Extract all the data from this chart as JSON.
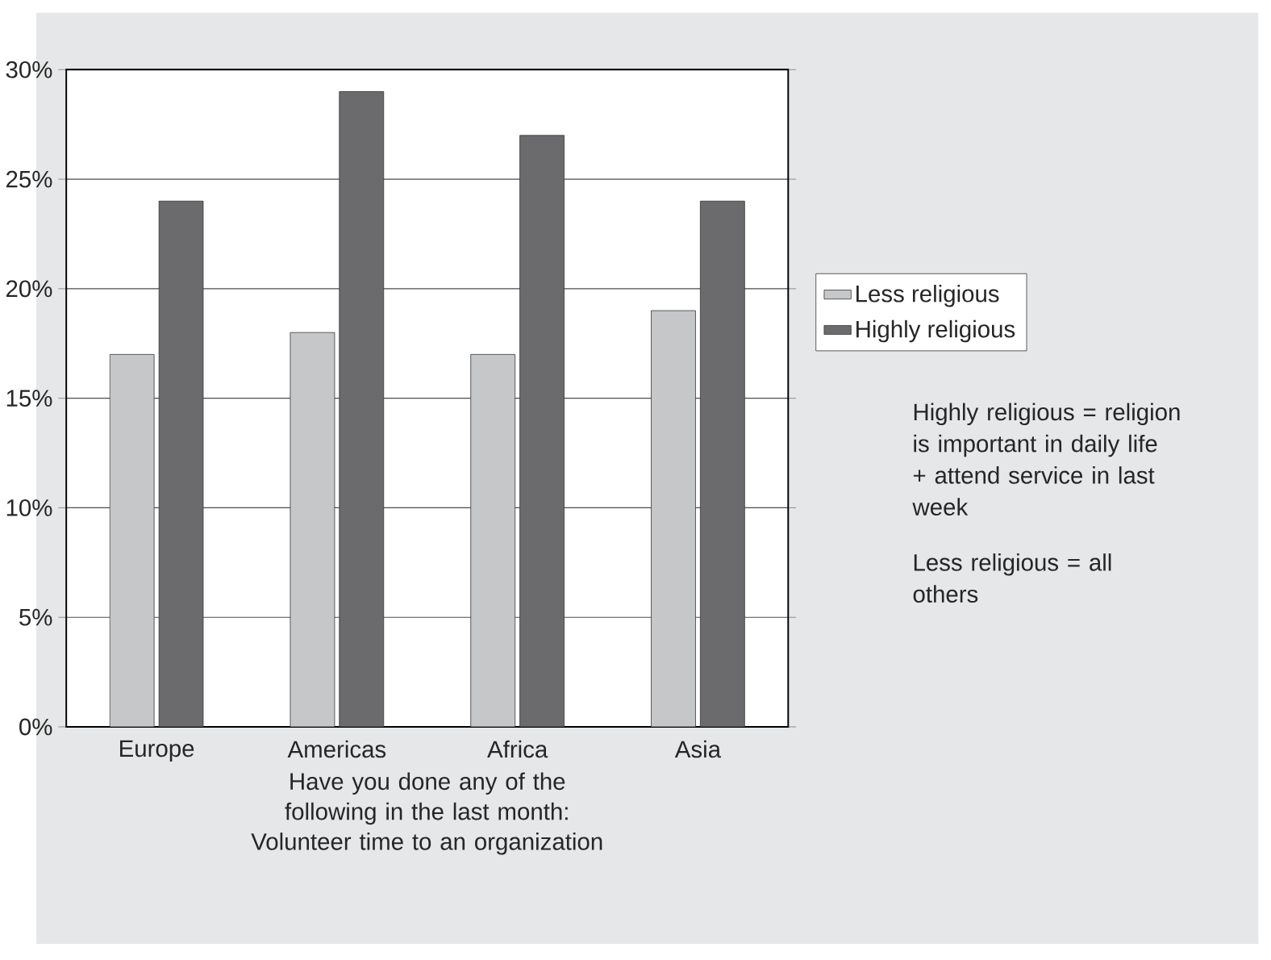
{
  "chart_data": {
    "type": "bar",
    "categories": [
      "Europe",
      "Americas",
      "Africa",
      "Asia"
    ],
    "series": [
      {
        "name": "Less religious",
        "color": "#c6c7c9",
        "values": [
          17,
          18,
          17,
          19
        ]
      },
      {
        "name": "Highly religious",
        "color": "#6b6b6d",
        "values": [
          24,
          29,
          27,
          24
        ]
      }
    ],
    "xlabel": "Have you done any of the following in the last month: Volunteer time to an organization",
    "ylim": [
      0,
      30
    ],
    "yticks": [
      {
        "value": 0,
        "label": "0%"
      },
      {
        "value": 5,
        "label": "5%"
      },
      {
        "value": 10,
        "label": "10%"
      },
      {
        "value": 15,
        "label": "15%"
      },
      {
        "value": 20,
        "label": "20%"
      },
      {
        "value": 25,
        "label": "25%"
      },
      {
        "value": 30,
        "label": "30%"
      }
    ],
    "grid": "y",
    "legend": "right",
    "annotations": [
      "Highly religious = religion is important in daily life + attend service in last week",
      "Less religious = all others"
    ]
  }
}
